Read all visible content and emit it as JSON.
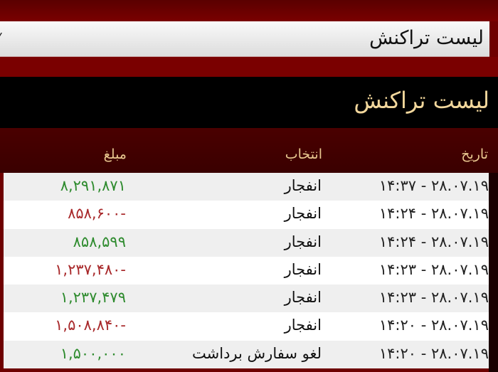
{
  "search": {
    "value": "لیست تراکنش",
    "caret": "⁄"
  },
  "title": "لیست تراکنش",
  "columns": {
    "date": "تاریخ",
    "selection": "انتخاب",
    "amount": "مبلغ"
  },
  "colors": {
    "positive": "#2e8b2e",
    "negative": "#a8282a",
    "title": "#f2d79c"
  },
  "rows": [
    {
      "date": "۱۴:۳۷ - ۲۸.۰۷.۱۹",
      "selection": "انفجار",
      "amount": "۸,۲۹۱,۸۷۱",
      "sign": "pos"
    },
    {
      "date": "۱۴:۲۴ - ۲۸.۰۷.۱۹",
      "selection": "انفجار",
      "amount": "۸۵۸,۶۰۰-",
      "sign": "neg"
    },
    {
      "date": "۱۴:۲۴ - ۲۸.۰۷.۱۹",
      "selection": "انفجار",
      "amount": "۸۵۸,۵۹۹",
      "sign": "pos"
    },
    {
      "date": "۱۴:۲۳ - ۲۸.۰۷.۱۹",
      "selection": "انفجار",
      "amount": "۱,۲۳۷,۴۸۰-",
      "sign": "neg"
    },
    {
      "date": "۱۴:۲۳ - ۲۸.۰۷.۱۹",
      "selection": "انفجار",
      "amount": "۱,۲۳۷,۴۷۹",
      "sign": "pos"
    },
    {
      "date": "۱۴:۲۰ - ۲۸.۰۷.۱۹",
      "selection": "انفجار",
      "amount": "۱,۵۰۸,۸۴۰-",
      "sign": "neg"
    },
    {
      "date": "۱۴:۲۰ - ۲۸.۰۷.۱۹",
      "selection": "لغو سفارش برداشت",
      "amount": "۱,۵۰۰,۰۰۰",
      "sign": "pos"
    }
  ]
}
